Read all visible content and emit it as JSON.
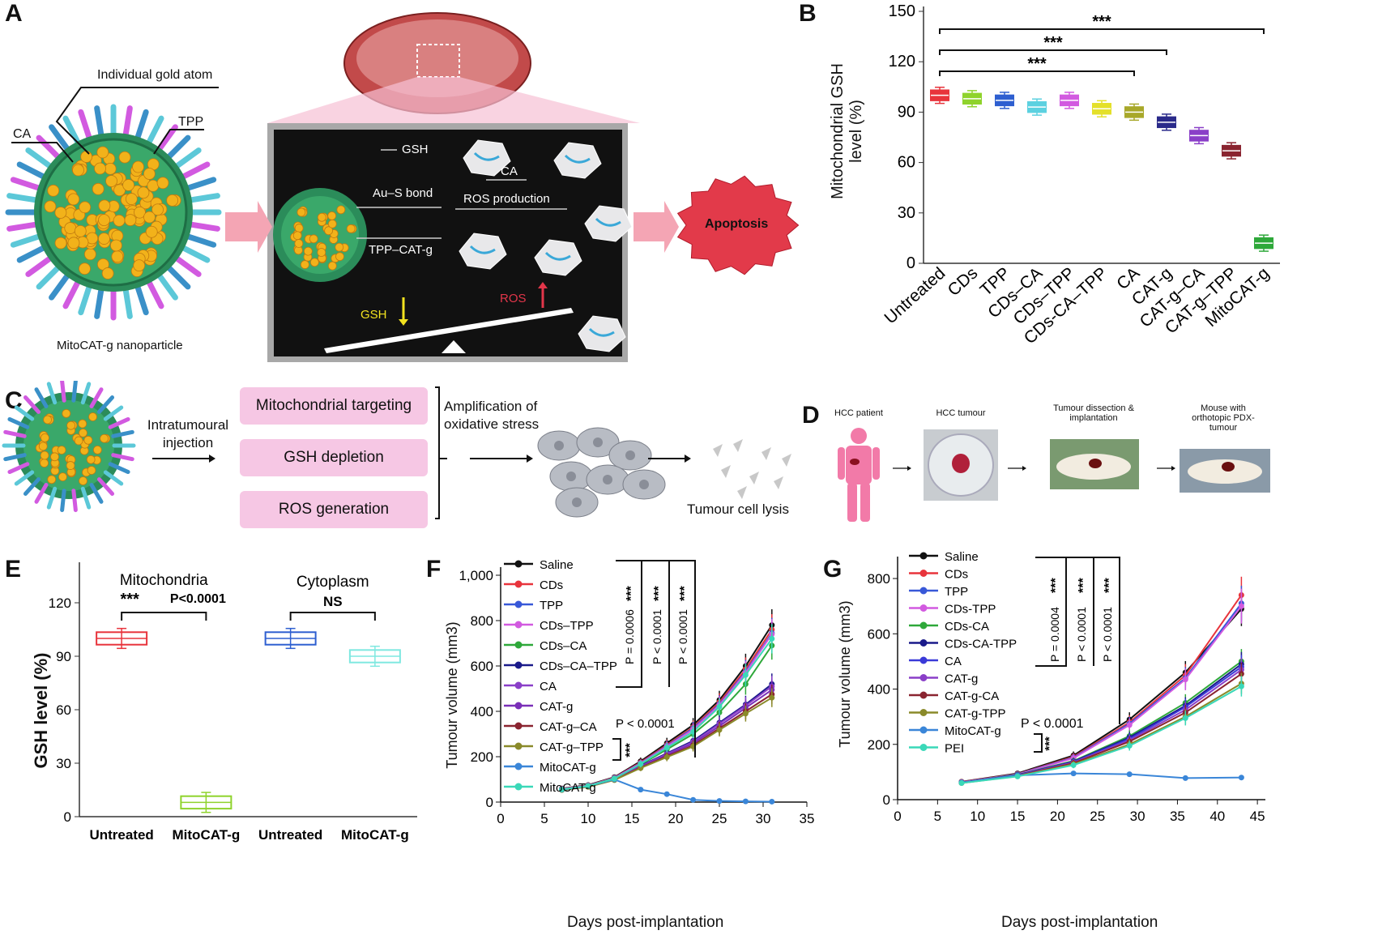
{
  "panel_labels": {
    "A": "A",
    "B": "B",
    "C": "C",
    "D": "D",
    "E": "E",
    "F": "F",
    "G": "G"
  },
  "panelA": {
    "gold_atom": "Individual gold atom",
    "ca": "CA",
    "tpp": "TPP",
    "nano_caption": "MitoCAT-g nanoparticle",
    "gsh": "GSH",
    "ca2": "CA",
    "ausbond": "Au–S bond",
    "ros_prod": "ROS production",
    "tpp_cat": "TPP–CAT-g",
    "gsh_low": "GSH",
    "ros": "ROS",
    "apoptosis": "Apoptosis",
    "colors": {
      "dark_bg": "#111111",
      "apoptosis": "#e23a4a",
      "arrow": "#f27a90",
      "gsh_arrow": "#f2e21f",
      "ros_arrow": "#e2364a"
    }
  },
  "panelC": {
    "injection": "Intratumoural injection",
    "boxes": [
      "Mitochondrial targeting",
      "GSH depletion",
      "ROS generation"
    ],
    "amplification": "Amplification of oxidative stress",
    "lysis": "Tumour cell lysis"
  },
  "panelD": {
    "steps": [
      "HCC patient",
      "HCC tumour",
      "Tumour dissection & implantation",
      "Mouse with orthotopic PDX-tumour"
    ]
  },
  "chart_data": [
    {
      "id": "B",
      "type": "box",
      "ylabel": "Mitochondrial GSH level (%)",
      "ylim": [
        0,
        150
      ],
      "yticks": [
        0,
        30,
        60,
        90,
        120,
        150
      ],
      "categories": [
        "Untreated",
        "CDs",
        "TPP",
        "CDs–CA",
        "CDs–TPP",
        "CDs-CA–TPP",
        "CA",
        "CAT-g",
        "CAT-g–CA",
        "CAT-g–TPP",
        "MitoCAT-g"
      ],
      "medians": [
        100,
        98,
        97,
        93,
        97,
        92,
        90,
        84,
        76,
        67,
        12
      ],
      "colors": [
        "#e8343c",
        "#8fd32c",
        "#2e5fd0",
        "#5cd1e0",
        "#d25ae0",
        "#e4e02a",
        "#a8a82a",
        "#2a2a8a",
        "#8a3fc8",
        "#8a2430",
        "#2ea83a"
      ],
      "significance": [
        "***",
        "***",
        "***"
      ]
    },
    {
      "id": "E",
      "type": "box",
      "ylabel": "GSH level (%)",
      "ylim": [
        0,
        140
      ],
      "yticks": [
        0,
        30,
        60,
        90,
        120
      ],
      "groups": [
        "Mitochondria",
        "Cytoplasm"
      ],
      "categories": [
        "Untreated",
        "MitoCAT-g",
        "Untreated",
        "MitoCAT-g"
      ],
      "medians": [
        100,
        8,
        100,
        90
      ],
      "colors": [
        "#e8343c",
        "#8fd32c",
        "#2e5fd0",
        "#7fe8e0"
      ],
      "significance": [
        "***",
        "P<0.0001",
        "NS"
      ]
    },
    {
      "id": "F",
      "type": "line",
      "xlabel": "Days post-implantation",
      "ylabel": "Tumour volume (mm3)",
      "xlim": [
        0,
        35
      ],
      "ylim": [
        0,
        1000
      ],
      "xticks": [
        0,
        5,
        10,
        15,
        20,
        25,
        30,
        35
      ],
      "yticks": [
        0,
        200,
        400,
        600,
        800,
        1000
      ],
      "yticklabels": [
        "0",
        "200",
        "400",
        "600",
        "800",
        "1,000"
      ],
      "x": [
        7,
        10,
        13,
        16,
        19,
        22,
        25,
        28,
        31
      ],
      "series": [
        {
          "name": "Saline",
          "color": "#111111",
          "values": [
            60,
            75,
            110,
            180,
            260,
            340,
            450,
            600,
            780
          ]
        },
        {
          "name": "CDs",
          "color": "#e8343c",
          "values": [
            58,
            73,
            108,
            175,
            252,
            330,
            440,
            585,
            760
          ]
        },
        {
          "name": "TPP",
          "color": "#3858d8",
          "values": [
            57,
            72,
            107,
            172,
            248,
            325,
            432,
            575,
            745
          ]
        },
        {
          "name": "CDs–TPP",
          "color": "#d25ae0",
          "values": [
            58,
            73,
            106,
            170,
            245,
            320,
            428,
            570,
            740
          ]
        },
        {
          "name": "CDs–CA",
          "color": "#2ea83a",
          "values": [
            56,
            71,
            104,
            165,
            232,
            300,
            395,
            520,
            690
          ]
        },
        {
          "name": "CDs–CA–TPP",
          "color": "#1a1a8a",
          "values": [
            55,
            70,
            102,
            160,
            215,
            270,
            350,
            430,
            520
          ]
        },
        {
          "name": "CA",
          "color": "#8a3fc8",
          "values": [
            55,
            70,
            100,
            158,
            212,
            265,
            345,
            425,
            510
          ]
        },
        {
          "name": "CAT-g",
          "color": "#7a2fb8",
          "values": [
            54,
            69,
            99,
            155,
            208,
            258,
            335,
            415,
            495
          ]
        },
        {
          "name": "CAT-g–CA",
          "color": "#8a2430",
          "values": [
            54,
            68,
            98,
            152,
            202,
            250,
            325,
            400,
            475
          ]
        },
        {
          "name": "CAT-g–TPP",
          "color": "#8a8a2a",
          "values": [
            53,
            67,
            97,
            150,
            198,
            245,
            318,
            390,
            460
          ]
        },
        {
          "name": "MitoCAT-g",
          "color": "#3a86d8",
          "values": [
            55,
            70,
            100,
            55,
            35,
            10,
            5,
            3,
            2
          ]
        },
        {
          "name": "MitoCAT-g",
          "color": "#3ad8b8",
          "values": [
            56,
            71,
            103,
            168,
            240,
            310,
            420,
            560,
            720
          ]
        }
      ],
      "annotations": [
        "P = 0.0006",
        "P < 0.0001",
        "P < 0.0001",
        "P < 0.0001",
        "***"
      ]
    },
    {
      "id": "G",
      "type": "line",
      "xlabel": "Days post-implantation",
      "ylabel": "Tumour volume (mm3)",
      "xlim": [
        0,
        46
      ],
      "ylim": [
        0,
        850
      ],
      "xticks": [
        0,
        5,
        10,
        15,
        20,
        25,
        30,
        35,
        40,
        45
      ],
      "yticks": [
        0,
        200,
        400,
        600,
        800
      ],
      "x": [
        8,
        15,
        22,
        29,
        36,
        43
      ],
      "series": [
        {
          "name": "Saline",
          "color": "#111111",
          "values": [
            65,
            95,
            160,
            290,
            460,
            690
          ]
        },
        {
          "name": "CDs",
          "color": "#e8343c",
          "values": [
            64,
            93,
            155,
            280,
            450,
            740
          ]
        },
        {
          "name": "TPP",
          "color": "#3858d8",
          "values": [
            63,
            92,
            152,
            275,
            440,
            710
          ]
        },
        {
          "name": "CDs-TPP",
          "color": "#d25ae0",
          "values": [
            63,
            91,
            150,
            270,
            435,
            700
          ]
        },
        {
          "name": "CDs-CA",
          "color": "#2ea83a",
          "values": [
            62,
            90,
            140,
            230,
            350,
            500
          ]
        },
        {
          "name": "CDs-CA-TPP",
          "color": "#1a1a8a",
          "values": [
            62,
            89,
            138,
            225,
            340,
            490
          ]
        },
        {
          "name": "CA",
          "color": "#3a3ad8",
          "values": [
            62,
            88,
            136,
            220,
            335,
            480
          ]
        },
        {
          "name": "CAT-g",
          "color": "#8a3fc8",
          "values": [
            61,
            87,
            134,
            215,
            325,
            470
          ]
        },
        {
          "name": "CAT-g-CA",
          "color": "#8a2430",
          "values": [
            61,
            86,
            132,
            210,
            315,
            455
          ]
        },
        {
          "name": "CAT-g-TPP",
          "color": "#8a8a2a",
          "values": [
            60,
            85,
            128,
            200,
            300,
            420
          ]
        },
        {
          "name": "MitoCAT-g",
          "color": "#3a86d8",
          "values": [
            62,
            88,
            95,
            92,
            78,
            80
          ]
        },
        {
          "name": "PEI",
          "color": "#3ad8b8",
          "values": [
            60,
            84,
            125,
            195,
            295,
            410
          ]
        }
      ],
      "annotations": [
        "P = 0.0004",
        "P < 0.0001",
        "P < 0.0001",
        "P < 0.0001",
        "***"
      ]
    }
  ]
}
